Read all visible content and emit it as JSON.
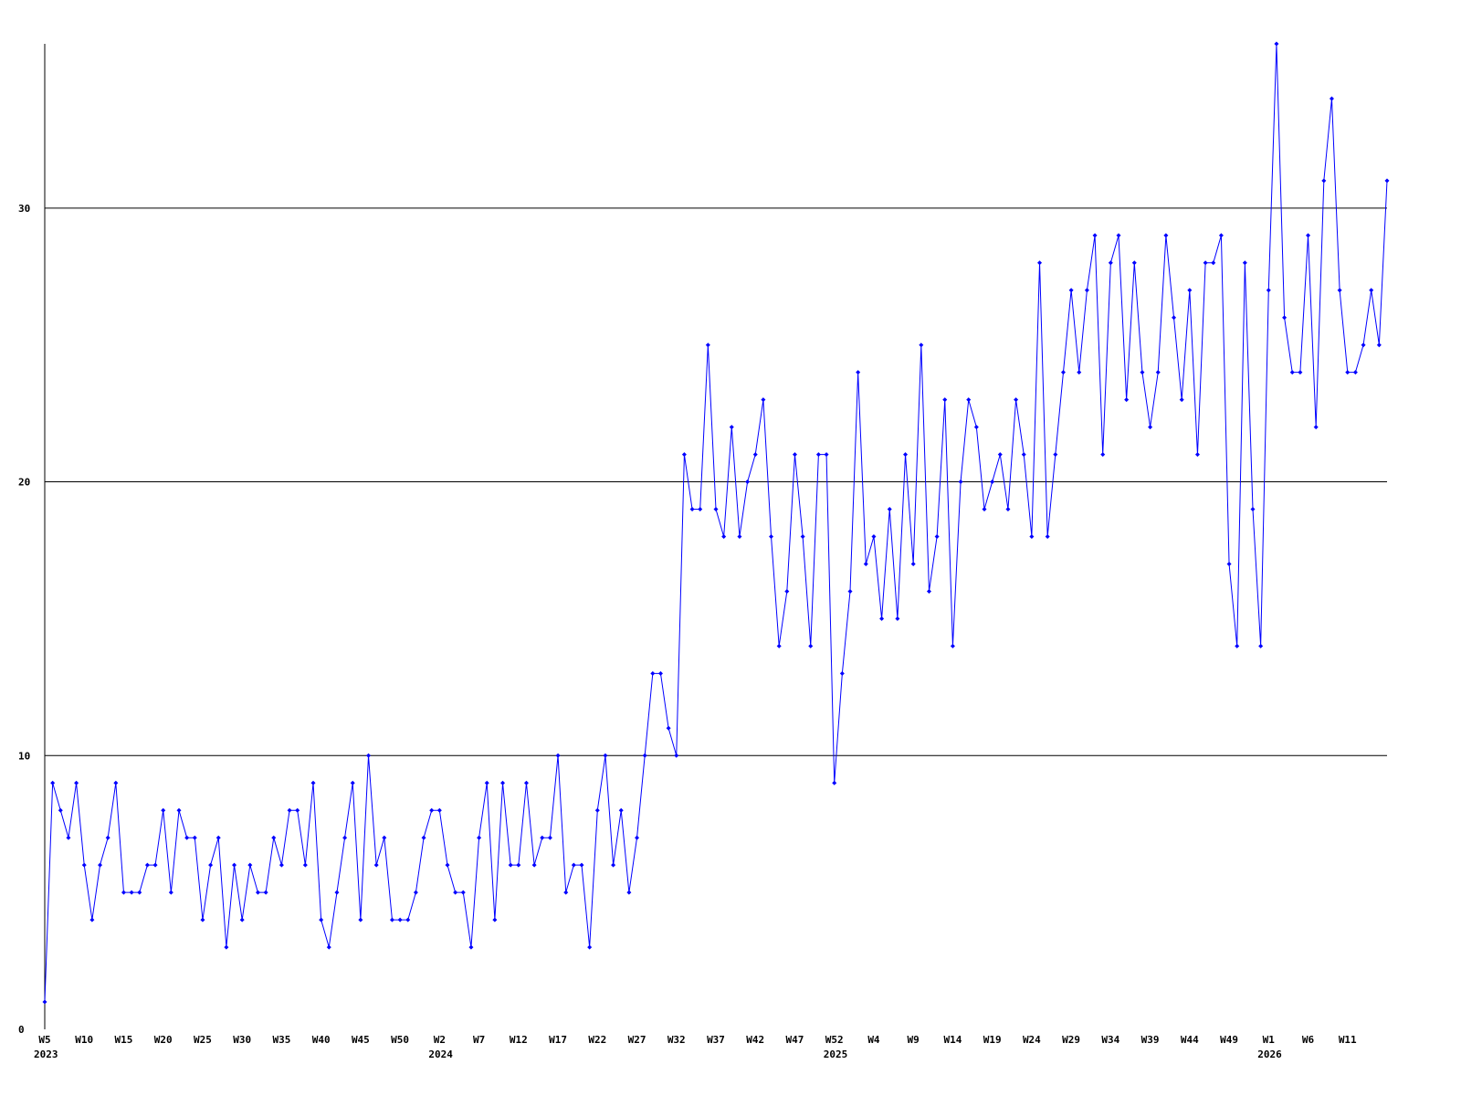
{
  "chart_data": {
    "type": "line",
    "categories": [
      "W5",
      null,
      null,
      null,
      null,
      "W10",
      null,
      null,
      null,
      null,
      "W15",
      null,
      null,
      null,
      null,
      "W20",
      null,
      null,
      null,
      null,
      "W25",
      null,
      null,
      null,
      null,
      "W30",
      null,
      null,
      null,
      null,
      "W35",
      null,
      null,
      null,
      null,
      "W40",
      null,
      null,
      null,
      null,
      "W45",
      null,
      null,
      null,
      null,
      "W50",
      null,
      null,
      null,
      null,
      "W2",
      null,
      null,
      null,
      null,
      "W7",
      null,
      null,
      null,
      null,
      "W12",
      null,
      null,
      null,
      null,
      "W17",
      null,
      null,
      null,
      null,
      "W22",
      null,
      null,
      null,
      null,
      "W27",
      null,
      null,
      null,
      null,
      "W32",
      null,
      null,
      null,
      null,
      "W37",
      null,
      null,
      null,
      null,
      "W42",
      null,
      null,
      null,
      null,
      "W47",
      null,
      null,
      null,
      null,
      "W52",
      null,
      null,
      null,
      null,
      "W4",
      null,
      null,
      null,
      null,
      "W9",
      null,
      null,
      null,
      null,
      "W14",
      null,
      null,
      null,
      null,
      "W19",
      null,
      null,
      null,
      null,
      "W24",
      null,
      null,
      null,
      null,
      "W29",
      null,
      null,
      null,
      null,
      "W34",
      null,
      null,
      null,
      null,
      "W39",
      null,
      null,
      null,
      null,
      "W44",
      null,
      null,
      null,
      null,
      "W49",
      null,
      null,
      null,
      null,
      "W1",
      null,
      null,
      null,
      null,
      "W6",
      null,
      null,
      null,
      null,
      "W11",
      null,
      null,
      null,
      null,
      null
    ],
    "years": [
      "2023",
      null,
      null,
      null,
      null,
      null,
      null,
      null,
      null,
      null,
      null,
      null,
      null,
      null,
      null,
      null,
      null,
      null,
      null,
      null,
      null,
      null,
      null,
      null,
      null,
      null,
      null,
      null,
      null,
      null,
      null,
      null,
      null,
      null,
      null,
      null,
      null,
      null,
      null,
      null,
      null,
      null,
      null,
      null,
      null,
      null,
      null,
      null,
      null,
      null,
      "2024",
      null,
      null,
      null,
      null,
      null,
      null,
      null,
      null,
      null,
      null,
      null,
      null,
      null,
      null,
      null,
      null,
      null,
      null,
      null,
      null,
      null,
      null,
      null,
      null,
      null,
      null,
      null,
      null,
      null,
      null,
      null,
      null,
      null,
      null,
      null,
      null,
      null,
      null,
      null,
      null,
      null,
      null,
      null,
      null,
      null,
      null,
      null,
      null,
      null,
      "2025",
      null,
      null,
      null,
      null,
      null,
      null,
      null,
      null,
      null,
      null,
      null,
      null,
      null,
      null,
      null,
      null,
      null,
      null,
      null,
      null,
      null,
      null,
      null,
      null,
      null,
      null,
      null,
      null,
      null,
      null,
      null,
      null,
      null,
      null,
      null,
      null,
      null,
      null,
      null,
      null,
      null,
      null,
      null,
      null,
      null,
      null,
      null,
      null,
      null,
      null,
      null,
      null,
      null,
      null,
      "2026",
      null,
      null,
      null,
      null,
      null,
      null,
      null,
      null,
      null,
      null,
      null,
      null,
      null,
      null,
      null
    ],
    "series": [
      {
        "color": "#0000ff",
        "values": [
          1,
          9,
          8,
          7,
          9,
          6,
          4,
          6,
          7,
          9,
          5,
          5,
          5,
          6,
          6,
          8,
          5,
          8,
          7,
          7,
          4,
          6,
          7,
          3,
          6,
          4,
          6,
          5,
          5,
          7,
          6,
          8,
          8,
          6,
          9,
          4,
          3,
          5,
          7,
          9,
          4,
          10,
          6,
          7,
          4,
          4,
          4,
          5,
          7,
          8,
          8,
          6,
          5,
          5,
          3,
          7,
          9,
          4,
          9,
          6,
          6,
          9,
          6,
          7,
          7,
          10,
          5,
          6,
          6,
          3,
          8,
          10,
          6,
          8,
          5,
          7,
          10,
          13,
          13,
          11,
          10,
          21,
          19,
          19,
          25,
          19,
          18,
          22,
          18,
          20,
          21,
          23,
          18,
          14,
          16,
          21,
          18,
          14,
          21,
          21,
          9,
          13,
          16,
          24,
          17,
          18,
          15,
          19,
          15,
          21,
          17,
          25,
          16,
          18,
          23,
          14,
          20,
          23,
          22,
          19,
          20,
          21,
          19,
          23,
          21,
          18,
          28,
          18,
          21,
          24,
          27,
          24,
          27,
          29,
          21,
          28,
          29,
          23,
          28,
          24,
          22,
          24,
          29,
          26,
          23,
          27,
          21,
          28,
          28,
          29,
          17,
          14,
          28,
          19,
          14,
          27,
          36,
          26,
          24,
          24,
          29,
          22,
          31,
          34,
          27,
          24,
          24,
          25,
          27,
          25,
          31
        ]
      }
    ],
    "ylim": [
      0,
      36
    ],
    "yticks": [
      0,
      10,
      20,
      30
    ],
    "grid": true
  }
}
